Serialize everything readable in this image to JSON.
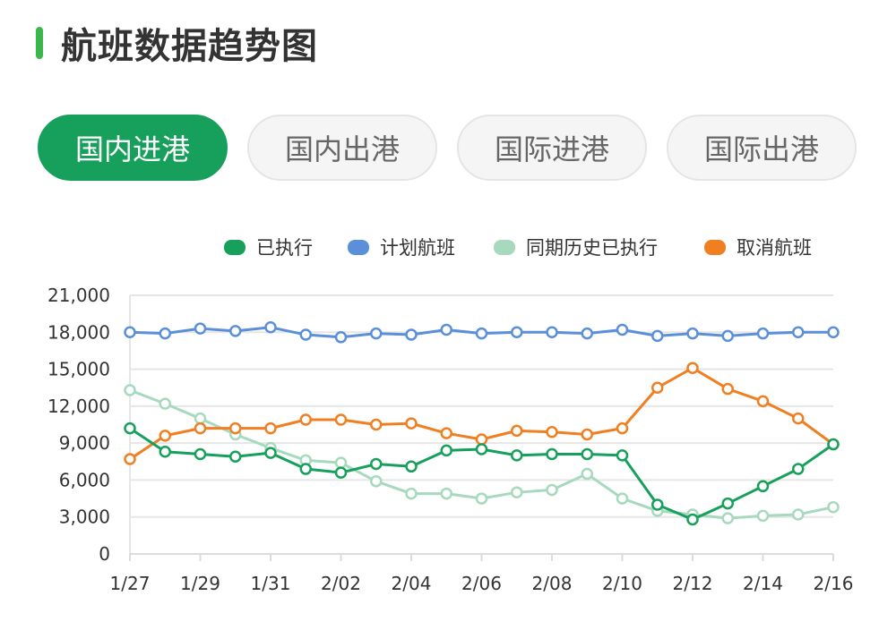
{
  "header": {
    "title": "航班数据趋势图",
    "accent_color": "#3cb64a"
  },
  "tabs": [
    {
      "label": "国内进港",
      "active": true
    },
    {
      "label": "国内出港",
      "active": false
    },
    {
      "label": "国际进港",
      "active": false
    },
    {
      "label": "国际出港",
      "active": false
    }
  ],
  "chart_data": {
    "type": "line",
    "x": [
      "1/27",
      "1/28",
      "1/29",
      "1/30",
      "1/31",
      "2/01",
      "2/02",
      "2/03",
      "2/04",
      "2/05",
      "2/06",
      "2/07",
      "2/08",
      "2/09",
      "2/10",
      "2/11",
      "2/12",
      "2/13",
      "2/14",
      "2/15",
      "2/16"
    ],
    "x_tick_labels": [
      "1/27",
      "1/29",
      "1/31",
      "2/02",
      "2/04",
      "2/06",
      "2/08",
      "2/10",
      "2/12",
      "2/14",
      "2/16"
    ],
    "y_ticks": [
      "0",
      "3,000",
      "6,000",
      "9,000",
      "12,000",
      "15,000",
      "18,000",
      "21,000"
    ],
    "ylim": [
      0,
      21000
    ],
    "grid": true,
    "legend_position": "top",
    "series": [
      {
        "name": "已执行",
        "color": "#17a05b",
        "values": [
          10200,
          8300,
          8100,
          7900,
          8200,
          6900,
          6600,
          7300,
          7100,
          8400,
          8500,
          8000,
          8100,
          8100,
          8000,
          4000,
          2800,
          4100,
          5500,
          6900,
          8900
        ]
      },
      {
        "name": "计划航班",
        "color": "#5b8fd9",
        "values": [
          18000,
          17900,
          18300,
          18100,
          18400,
          17800,
          17600,
          17900,
          17800,
          18200,
          17900,
          18000,
          18000,
          17900,
          18200,
          17700,
          17900,
          17700,
          17900,
          18000,
          18000
        ]
      },
      {
        "name": "同期历史已执行",
        "color": "#a6d9bd",
        "values": [
          13300,
          12200,
          11000,
          9700,
          8600,
          7600,
          7400,
          5900,
          4900,
          4900,
          4500,
          5000,
          5200,
          6500,
          4500,
          3500,
          3200,
          2900,
          3100,
          3200,
          3800
        ]
      },
      {
        "name": "取消航班",
        "color": "#f07f22",
        "values": [
          7700,
          9600,
          10200,
          10200,
          10200,
          10900,
          10900,
          10500,
          10600,
          9800,
          9300,
          10000,
          9900,
          9700,
          10200,
          13500,
          15100,
          13400,
          12400,
          11000,
          8900
        ]
      }
    ]
  }
}
